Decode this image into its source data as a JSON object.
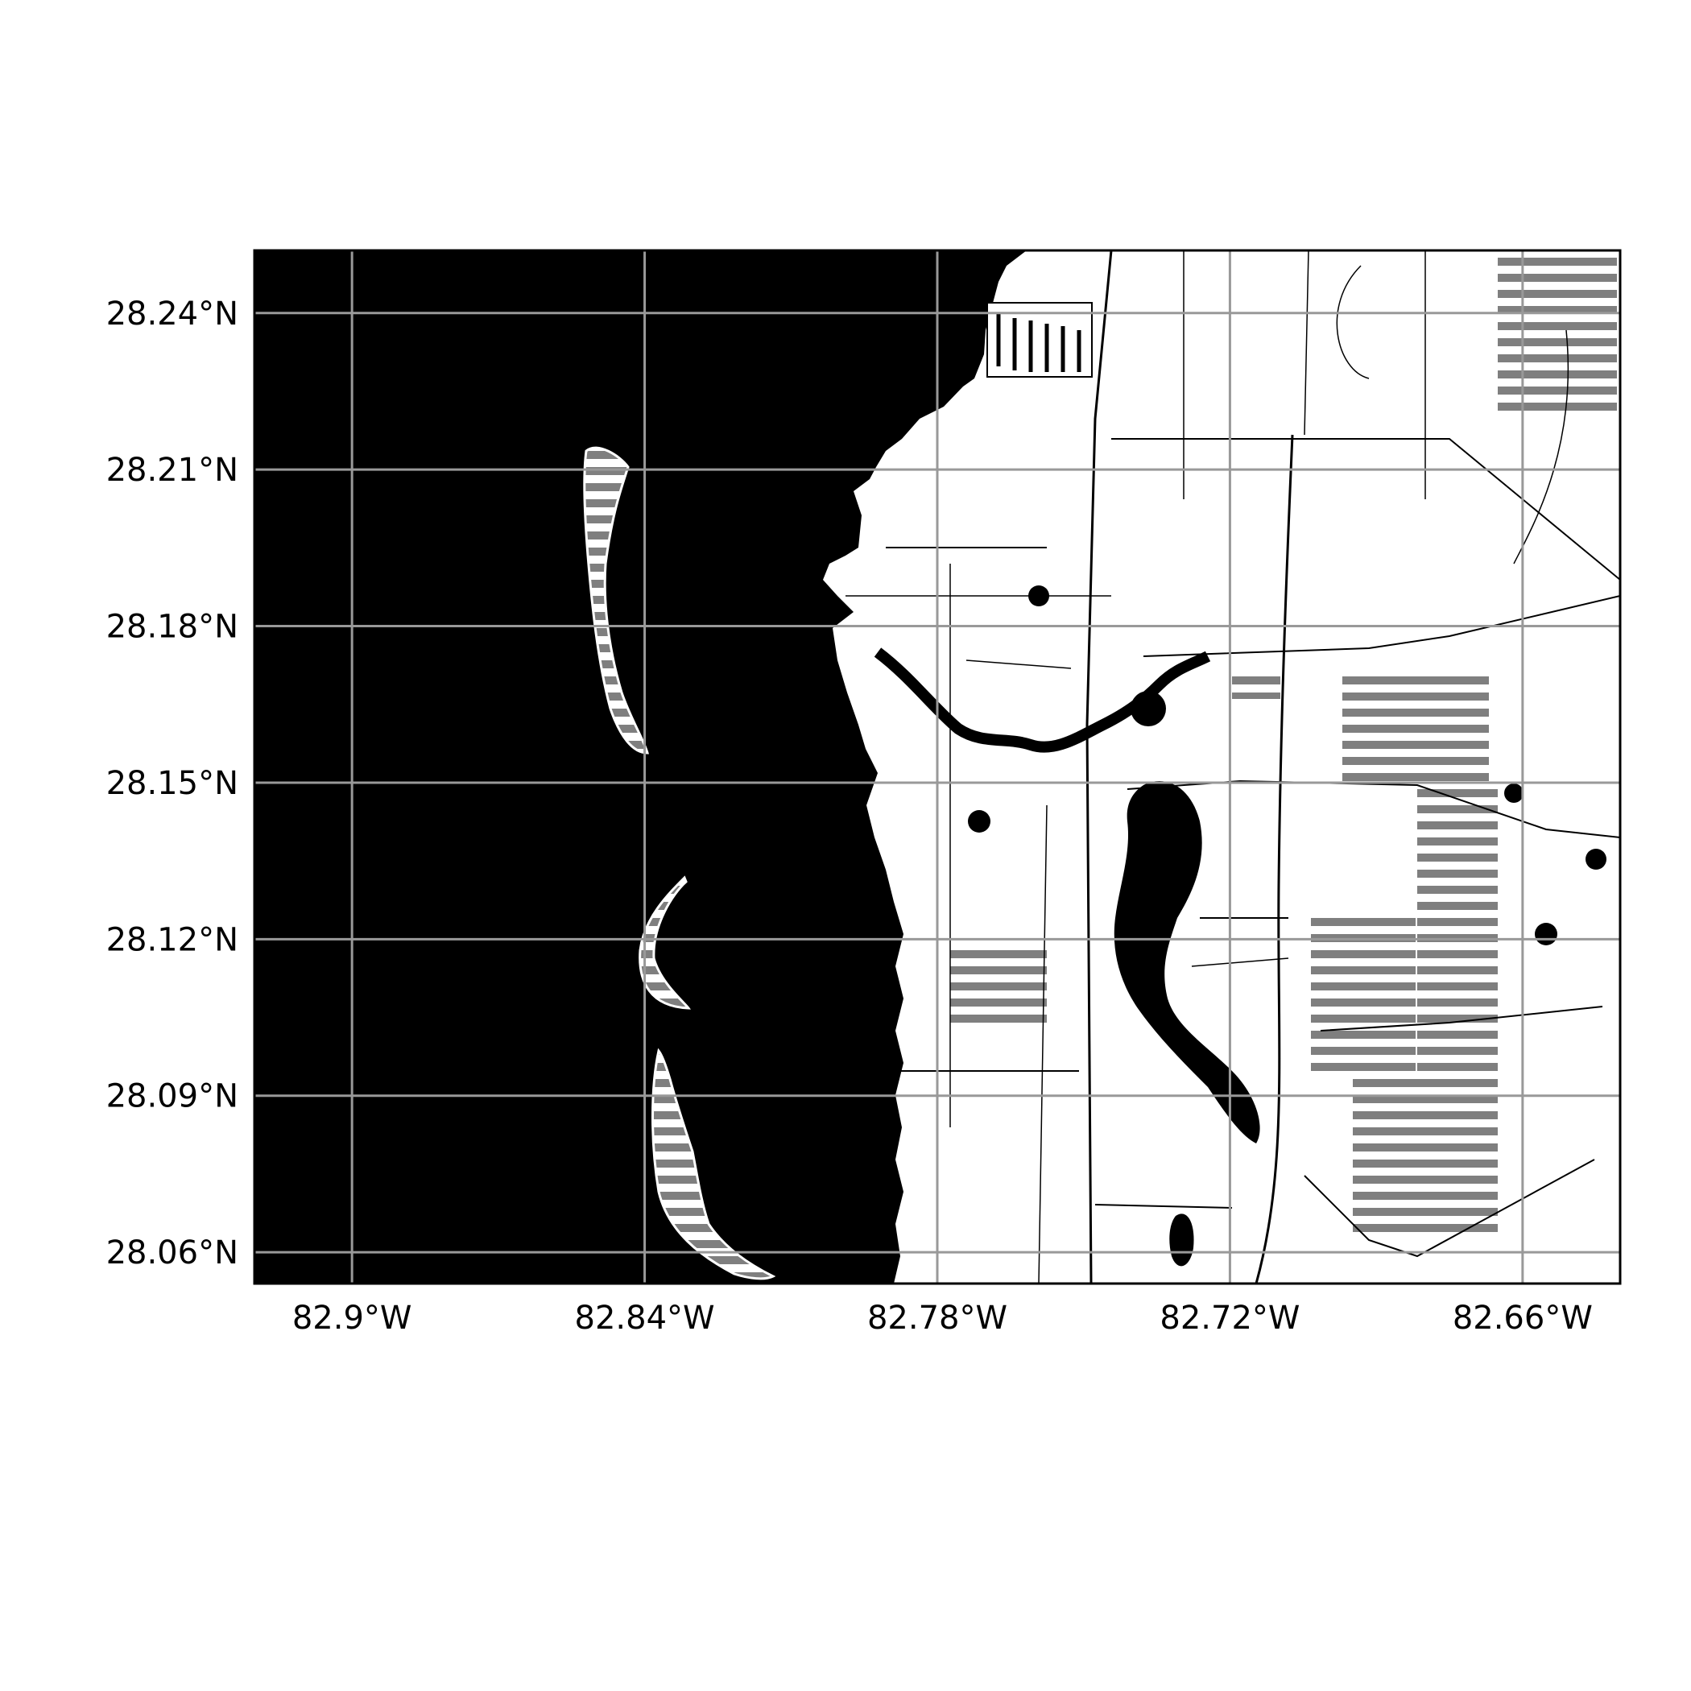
{
  "map": {
    "projection": "PlateCarree",
    "extent": {
      "lon": [
        -82.92,
        -82.64
      ],
      "lat": [
        28.054,
        28.252
      ]
    },
    "style": "monochrome street map",
    "colors": {
      "water": "#000000",
      "land": "#ffffff",
      "grid": "#999999",
      "frame": "#000000",
      "hatch": "#7f7f7f"
    },
    "gridlines": true,
    "x_ticks": [
      {
        "value": -82.9,
        "label": "82.9°W"
      },
      {
        "value": -82.84,
        "label": "82.84°W"
      },
      {
        "value": -82.78,
        "label": "82.78°W"
      },
      {
        "value": -82.72,
        "label": "82.72°W"
      },
      {
        "value": -82.66,
        "label": "82.66°W"
      }
    ],
    "y_ticks": [
      {
        "value": 28.24,
        "label": "28.24°N"
      },
      {
        "value": 28.21,
        "label": "28.21°N"
      },
      {
        "value": 28.18,
        "label": "28.18°N"
      },
      {
        "value": 28.15,
        "label": "28.15°N"
      },
      {
        "value": 28.12,
        "label": "28.12°N"
      },
      {
        "value": 28.09,
        "label": "28.09°N"
      },
      {
        "value": 28.06,
        "label": "28.06°N"
      }
    ]
  }
}
